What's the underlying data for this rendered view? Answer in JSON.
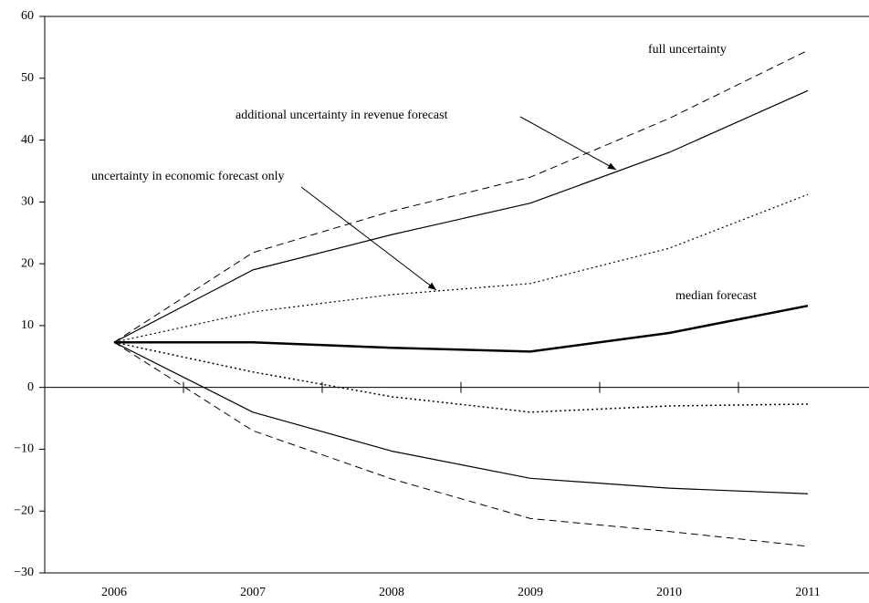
{
  "chart_data": {
    "type": "line",
    "categories": [
      "2006",
      "2007",
      "2008",
      "2009",
      "2010",
      "2011"
    ],
    "ylim": [
      -30,
      60
    ],
    "yticks": [
      {
        "value": -30,
        "label": "−30"
      },
      {
        "value": -20,
        "label": "−20"
      },
      {
        "value": -10,
        "label": "−10"
      },
      0,
      10,
      20,
      30,
      40,
      50,
      60
    ],
    "series": [
      {
        "color": "#000000",
        "style": "dashed",
        "width": 1,
        "values": [
          7.3,
          21.8,
          28.5,
          34,
          43.5,
          54.5
        ]
      },
      {
        "color": "#000000",
        "style": "solid",
        "width": 1.2,
        "values": [
          7.3,
          19,
          24.7,
          29.8,
          38,
          48
        ]
      },
      {
        "color": "#000000",
        "style": "dotted",
        "width": 1.2,
        "values": [
          7.3,
          12.2,
          15,
          16.8,
          22.5,
          31.2
        ]
      },
      {
        "color": "#000000",
        "style": "solid",
        "width": 2.5,
        "values": [
          7.3,
          7.3,
          6.4,
          5.8,
          8.8,
          13.2
        ]
      },
      {
        "color": "#000000",
        "style": "dotted",
        "width": 1.5,
        "values": [
          7.3,
          2.5,
          -1.5,
          -4,
          -3,
          -2.7
        ]
      },
      {
        "color": "#000000",
        "style": "solid",
        "width": 1.2,
        "values": [
          7.3,
          -4,
          -10.3,
          -14.7,
          -16.3,
          -17.2
        ]
      },
      {
        "color": "#000000",
        "style": "dashed",
        "width": 1,
        "values": [
          7.3,
          -7,
          -14.8,
          -21.2,
          -23.3,
          -25.7
        ]
      }
    ],
    "annotations": [
      "full uncertainty",
      "additional uncertainty in revenue forecast",
      "uncertainty in economic forecast only",
      "median forecast"
    ]
  }
}
